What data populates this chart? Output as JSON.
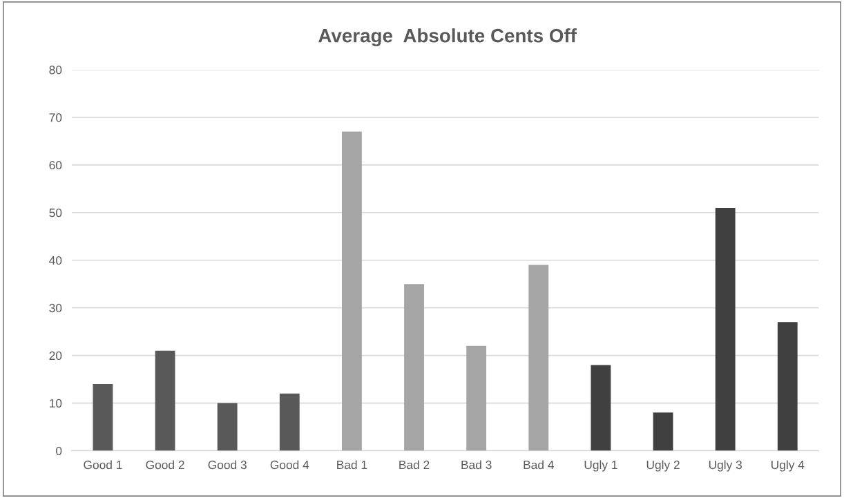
{
  "chart_data": {
    "type": "bar",
    "title": "Average  Absolute Cents Off",
    "categories": [
      "Good 1",
      "Good 2",
      "Good 3",
      "Good 4",
      "Bad 1",
      "Bad 2",
      "Bad 3",
      "Bad 4",
      "Ugly 1",
      "Ugly 2",
      "Ugly 3",
      "Ugly 4"
    ],
    "values": [
      14,
      21,
      10,
      12,
      67,
      35,
      22,
      39,
      18,
      8,
      51,
      27
    ],
    "colors": [
      "#595959",
      "#595959",
      "#595959",
      "#595959",
      "#a5a5a5",
      "#a5a5a5",
      "#a5a5a5",
      "#a5a5a5",
      "#404040",
      "#404040",
      "#404040",
      "#404040"
    ],
    "ylim": [
      0,
      80
    ],
    "yticks": [
      0,
      10,
      20,
      30,
      40,
      50,
      60,
      70,
      80
    ],
    "grid": "y"
  }
}
